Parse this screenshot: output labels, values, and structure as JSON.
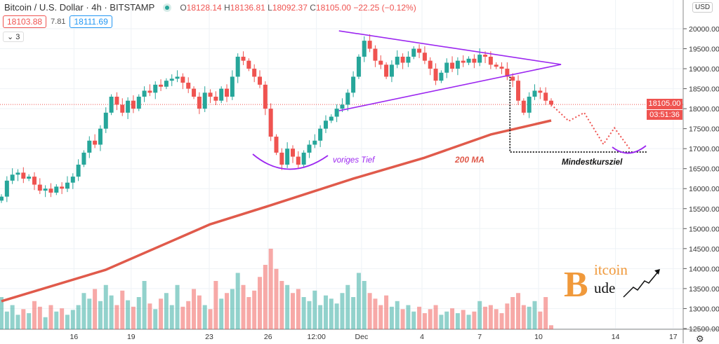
{
  "header": {
    "title": "Bitcoin / U.S. Dollar · 4h · BITSTAMP",
    "ohlc": {
      "o_label": "O",
      "o": "18128.14",
      "h_label": "H",
      "h": "18136.81",
      "l_label": "L",
      "l": "18092.37",
      "c_label": "C",
      "c": "18105.00",
      "change": "−22.25 (−0.12%)"
    },
    "bid": "18103.88",
    "spread": "7.81",
    "ask": "18111.69",
    "indicators_toggle": "3",
    "currency": "USD"
  },
  "price_axis": {
    "current_price": "18105.00",
    "countdown": "03:51:36"
  },
  "annotations": {
    "previous_low": "voriges Tief",
    "ma_label": "200 MA",
    "target_label": "Mindestkursziel"
  },
  "logo": {
    "text_top": "itcoin",
    "text_bottom": "ude",
    "letter": "B"
  },
  "colors": {
    "up": "#26a69a",
    "down": "#ef5350",
    "triangle": "#9c27f0",
    "ma": "#e05a4b",
    "grid": "#eef2f6"
  },
  "chart_data": {
    "type": "candlestick",
    "title": "Bitcoin / U.S. Dollar · 4h · BITSTAMP",
    "ylim": [
      12500,
      20250
    ],
    "yticks": [
      12500,
      13000,
      13500,
      14000,
      14500,
      15000,
      15500,
      16000,
      16500,
      17000,
      17500,
      18000,
      18500,
      19000,
      19500,
      20000
    ],
    "xticks": [
      {
        "label": "16",
        "index": 13.2
      },
      {
        "label": "19",
        "index": 23.6
      },
      {
        "label": "23",
        "index": 37.8
      },
      {
        "label": "26",
        "index": 48.5
      },
      {
        "label": "12:00",
        "index": 57.3
      },
      {
        "label": "Dec",
        "index": 65.5
      },
      {
        "label": "4",
        "index": 76.5
      },
      {
        "label": "7",
        "index": 87
      },
      {
        "label": "10",
        "index": 97.7
      },
      {
        "label": "14",
        "index": 111.7
      },
      {
        "label": "17",
        "index": 122.2
      }
    ],
    "closes": [
      15800,
      16200,
      16350,
      16400,
      16250,
      16300,
      16100,
      15950,
      16000,
      15900,
      16050,
      16000,
      16150,
      16300,
      16600,
      16900,
      17200,
      17100,
      17500,
      17900,
      18300,
      18100,
      17900,
      18200,
      18000,
      18300,
      18450,
      18400,
      18600,
      18550,
      18700,
      18750,
      18800,
      18650,
      18500,
      18300,
      18000,
      18400,
      18300,
      18200,
      18500,
      18300,
      18800,
      19300,
      19200,
      19000,
      18800,
      18600,
      18000,
      17300,
      16900,
      16600,
      17000,
      16800,
      16600,
      16900,
      17100,
      17200,
      17500,
      17700,
      17800,
      18000,
      18100,
      18400,
      18800,
      19300,
      19700,
      19500,
      19200,
      19100,
      18800,
      19100,
      19300,
      19150,
      19300,
      19500,
      19400,
      19200,
      19000,
      18700,
      18900,
      19150,
      19000,
      19200,
      19150,
      19250,
      19150,
      19350,
      19300,
      19100,
      19050,
      19000,
      18800,
      18700,
      18200,
      17900,
      18300,
      18450,
      18400,
      18200,
      18105
    ],
    "volumes": [
      40,
      22,
      30,
      18,
      25,
      20,
      35,
      28,
      15,
      30,
      22,
      26,
      18,
      24,
      30,
      45,
      38,
      50,
      35,
      55,
      42,
      30,
      48,
      36,
      28,
      40,
      60,
      32,
      25,
      38,
      45,
      30,
      55,
      28,
      35,
      50,
      42,
      30,
      25,
      60,
      38,
      45,
      50,
      70,
      55,
      40,
      48,
      65,
      80,
      100,
      75,
      60,
      55,
      45,
      50,
      40,
      35,
      48,
      30,
      42,
      38,
      32,
      45,
      55,
      40,
      70,
      60,
      45,
      38,
      30,
      42,
      28,
      35,
      25,
      30,
      22,
      28,
      20,
      25,
      30,
      18,
      22,
      26,
      20,
      24,
      18,
      22,
      35,
      28,
      30,
      25,
      20,
      32,
      40,
      45,
      30,
      28,
      35,
      22,
      40,
      5
    ],
    "ma200": {
      "label": "200 MA",
      "points": [
        [
          0,
          13183
        ],
        [
          19,
          13971
        ],
        [
          38,
          15110
        ],
        [
          49,
          15584
        ],
        [
          64,
          16250
        ],
        [
          77,
          16775
        ],
        [
          89,
          17354
        ],
        [
          100,
          17704
        ]
      ]
    },
    "triangle": {
      "upper": [
        [
          61.4,
          19947
        ],
        [
          101.8,
          19106
        ]
      ],
      "lower": [
        [
          61.4,
          17949
        ],
        [
          101.8,
          19106
        ]
      ]
    },
    "projection": [
      [
        100,
        18105
      ],
      [
        103.2,
        17690
      ],
      [
        106,
        17900
      ],
      [
        109.5,
        17110
      ],
      [
        111.5,
        17520
      ],
      [
        114.3,
        16990
      ]
    ],
    "target": {
      "label": "Mindestkursziel",
      "start": [
        92.5,
        18800
      ],
      "level": 16916,
      "end_index": 117.5
    }
  }
}
